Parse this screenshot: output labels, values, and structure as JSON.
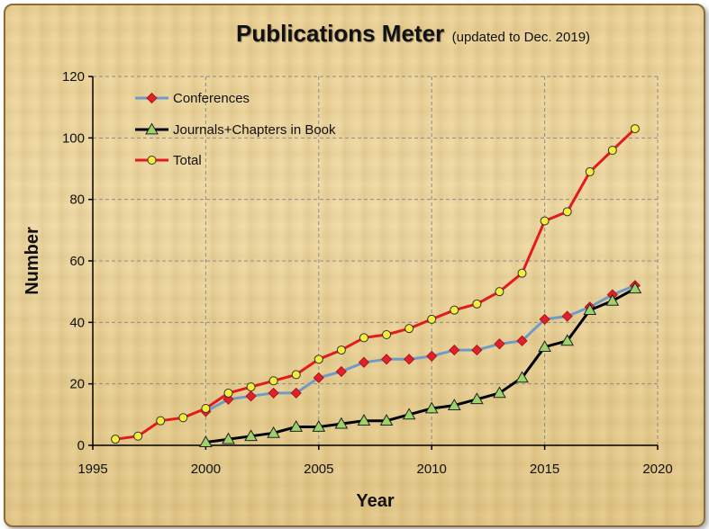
{
  "title": "Publications Meter",
  "subtitle": "(updated  to Dec. 2019)",
  "chart_data": {
    "type": "line",
    "xlabel": "Year",
    "ylabel": "Number",
    "xlim": [
      1995,
      2020
    ],
    "ylim": [
      0,
      120
    ],
    "xticks": [
      1995,
      2000,
      2005,
      2010,
      2015,
      2020
    ],
    "yticks": [
      0,
      20,
      40,
      60,
      80,
      100,
      120
    ],
    "grid": true,
    "legend_position": "top-left",
    "series": [
      {
        "name": "Conferences",
        "color": "#6f9bc8",
        "marker": "diamond",
        "marker_color": "#e0202a",
        "x": [
          2000,
          2001,
          2002,
          2003,
          2004,
          2005,
          2006,
          2007,
          2008,
          2009,
          2010,
          2011,
          2012,
          2013,
          2014,
          2015,
          2016,
          2017,
          2018,
          2019
        ],
        "y": [
          11,
          15,
          16,
          17,
          17,
          22,
          24,
          27,
          28,
          28,
          29,
          31,
          31,
          33,
          34,
          41,
          42,
          45,
          49,
          52
        ]
      },
      {
        "name": "Journals+Chapters in Book",
        "color": "#000000",
        "marker": "triangle",
        "marker_color": "#9bd36a",
        "x": [
          2000,
          2001,
          2002,
          2003,
          2004,
          2005,
          2006,
          2007,
          2008,
          2009,
          2010,
          2011,
          2012,
          2013,
          2014,
          2015,
          2016,
          2017,
          2018,
          2019
        ],
        "y": [
          1,
          2,
          3,
          4,
          6,
          6,
          7,
          8,
          8,
          10,
          12,
          13,
          15,
          17,
          22,
          32,
          34,
          44,
          47,
          51
        ]
      },
      {
        "name": "Total",
        "color": "#e21b1b",
        "marker": "circle",
        "marker_color": "#f3ee3a",
        "x": [
          1996,
          1997,
          1998,
          1999,
          2000,
          2001,
          2002,
          2003,
          2004,
          2005,
          2006,
          2007,
          2008,
          2009,
          2010,
          2011,
          2012,
          2013,
          2014,
          2015,
          2016,
          2017,
          2018,
          2019
        ],
        "y": [
          2,
          3,
          8,
          9,
          12,
          17,
          19,
          21,
          23,
          28,
          31,
          35,
          36,
          38,
          41,
          44,
          46,
          50,
          56,
          73,
          76,
          89,
          96,
          103
        ]
      }
    ]
  }
}
